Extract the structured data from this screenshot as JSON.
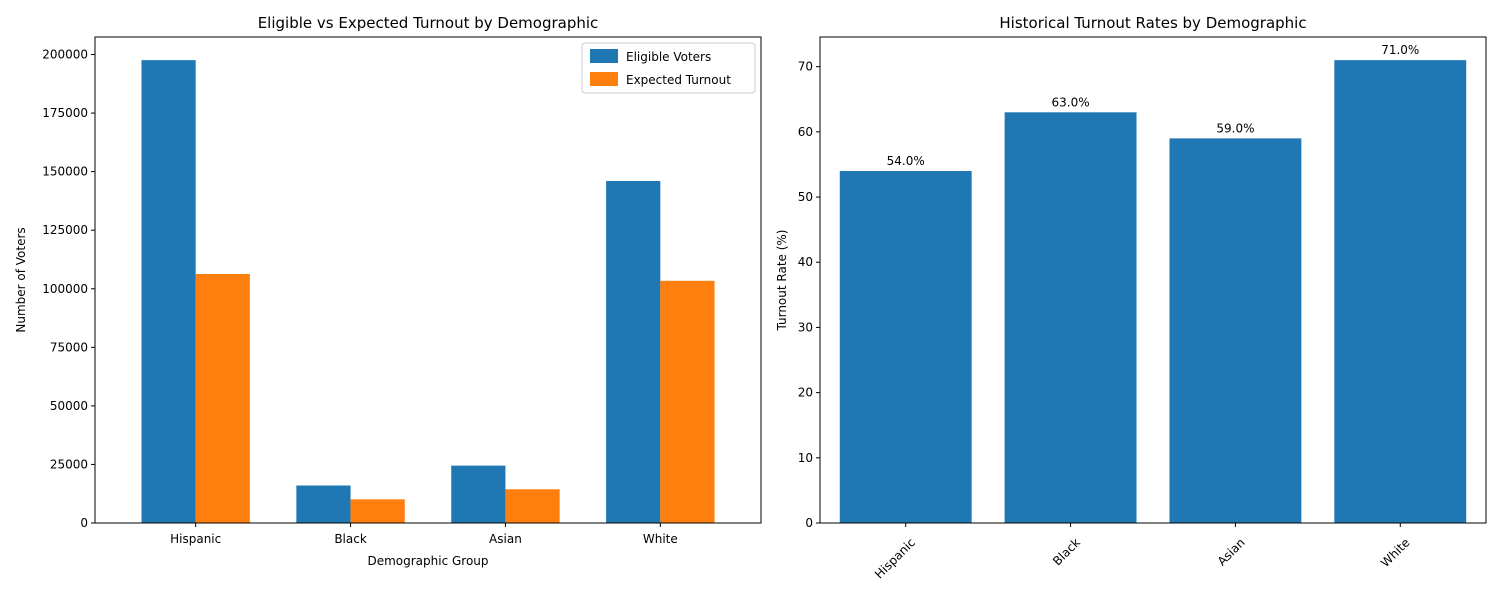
{
  "chart_data": [
    {
      "type": "bar",
      "title": "Eligible vs Expected Turnout by Demographic",
      "xlabel": "Demographic Group",
      "ylabel": "Number of Voters",
      "categories": [
        "Hispanic",
        "Black",
        "Asian",
        "White"
      ],
      "series": [
        {
          "name": "Eligible Voters",
          "values": [
            197600,
            16000,
            24500,
            146000
          ],
          "color": "#1f77b4"
        },
        {
          "name": "Expected Turnout",
          "values": [
            106300,
            10100,
            14400,
            103400
          ],
          "color": "#ff7f0e"
        }
      ],
      "ylim": [
        0,
        207480
      ],
      "yticks": [
        0,
        25000,
        50000,
        75000,
        100000,
        125000,
        150000,
        175000,
        200000
      ],
      "legend_position": "top-right",
      "grid": false
    },
    {
      "type": "bar",
      "title": "Historical Turnout Rates by Demographic",
      "xlabel": "",
      "ylabel": "Turnout Rate (%)",
      "categories": [
        "Hispanic",
        "Black",
        "Asian",
        "White"
      ],
      "series": [
        {
          "values": [
            54.0,
            63.0,
            59.0,
            71.0
          ],
          "color": "#1f77b4"
        }
      ],
      "data_labels": [
        "54.0%",
        "63.0%",
        "59.0%",
        "71.0%"
      ],
      "ylim": [
        0,
        74.55
      ],
      "yticks": [
        0,
        10,
        20,
        30,
        40,
        50,
        60,
        70
      ],
      "xtick_rotation": 45,
      "grid": false
    }
  ]
}
